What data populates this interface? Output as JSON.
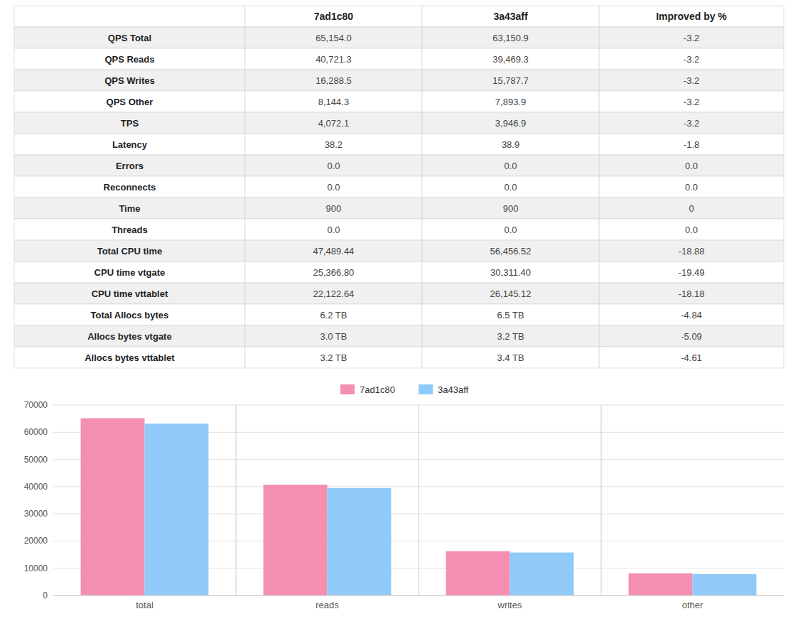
{
  "chart_data": [
    {
      "type": "table",
      "columns": [
        null,
        "7ad1c80",
        "3a43aff",
        "Improved by %"
      ],
      "rows": [
        [
          "QPS Total",
          "65,154.0",
          "63,150.9",
          "-3.2"
        ],
        [
          "QPS Reads",
          "40,721.3",
          "39,469.3",
          "-3.2"
        ],
        [
          "QPS Writes",
          "16,288.5",
          "15,787.7",
          "-3.2"
        ],
        [
          "QPS Other",
          "8,144.3",
          "7,893.9",
          "-3.2"
        ],
        [
          "TPS",
          "4,072.1",
          "3,946.9",
          "-3.2"
        ],
        [
          "Latency",
          "38.2",
          "38.9",
          "-1.8"
        ],
        [
          "Errors",
          "0.0",
          "0.0",
          "0.0"
        ],
        [
          "Reconnects",
          "0.0",
          "0.0",
          "0.0"
        ],
        [
          "Time",
          "900",
          "900",
          "0"
        ],
        [
          "Threads",
          "0.0",
          "0.0",
          "0.0"
        ],
        [
          "Total CPU time",
          "47,489.44",
          "56,456.52",
          "-18.88"
        ],
        [
          "CPU time vtgate",
          "25,366.80",
          "30,311.40",
          "-19.49"
        ],
        [
          "CPU time vttablet",
          "22,122.64",
          "26,145.12",
          "-18.18"
        ],
        [
          "Total Allocs bytes",
          "6.2 TB",
          "6.5 TB",
          "-4.84"
        ],
        [
          "Allocs bytes vtgate",
          "3.0 TB",
          "3.2 TB",
          "-5.09"
        ],
        [
          "Allocs bytes vttablet",
          "3.2 TB",
          "3.4 TB",
          "-4.61"
        ]
      ]
    },
    {
      "type": "bar",
      "categories": [
        "total",
        "reads",
        "writes",
        "other"
      ],
      "series": [
        {
          "name": "7ad1c80",
          "color": "#f48fb1",
          "values": [
            65154.0,
            40721.3,
            16288.5,
            8144.3
          ]
        },
        {
          "name": "3a43aff",
          "color": "#90caf9",
          "values": [
            63150.9,
            39469.3,
            15787.7,
            7893.9
          ]
        }
      ],
      "ylim": [
        0,
        70000
      ],
      "yticks": [
        0,
        10000,
        20000,
        30000,
        40000,
        50000,
        60000,
        70000
      ],
      "grid": true,
      "legend": "top"
    }
  ]
}
